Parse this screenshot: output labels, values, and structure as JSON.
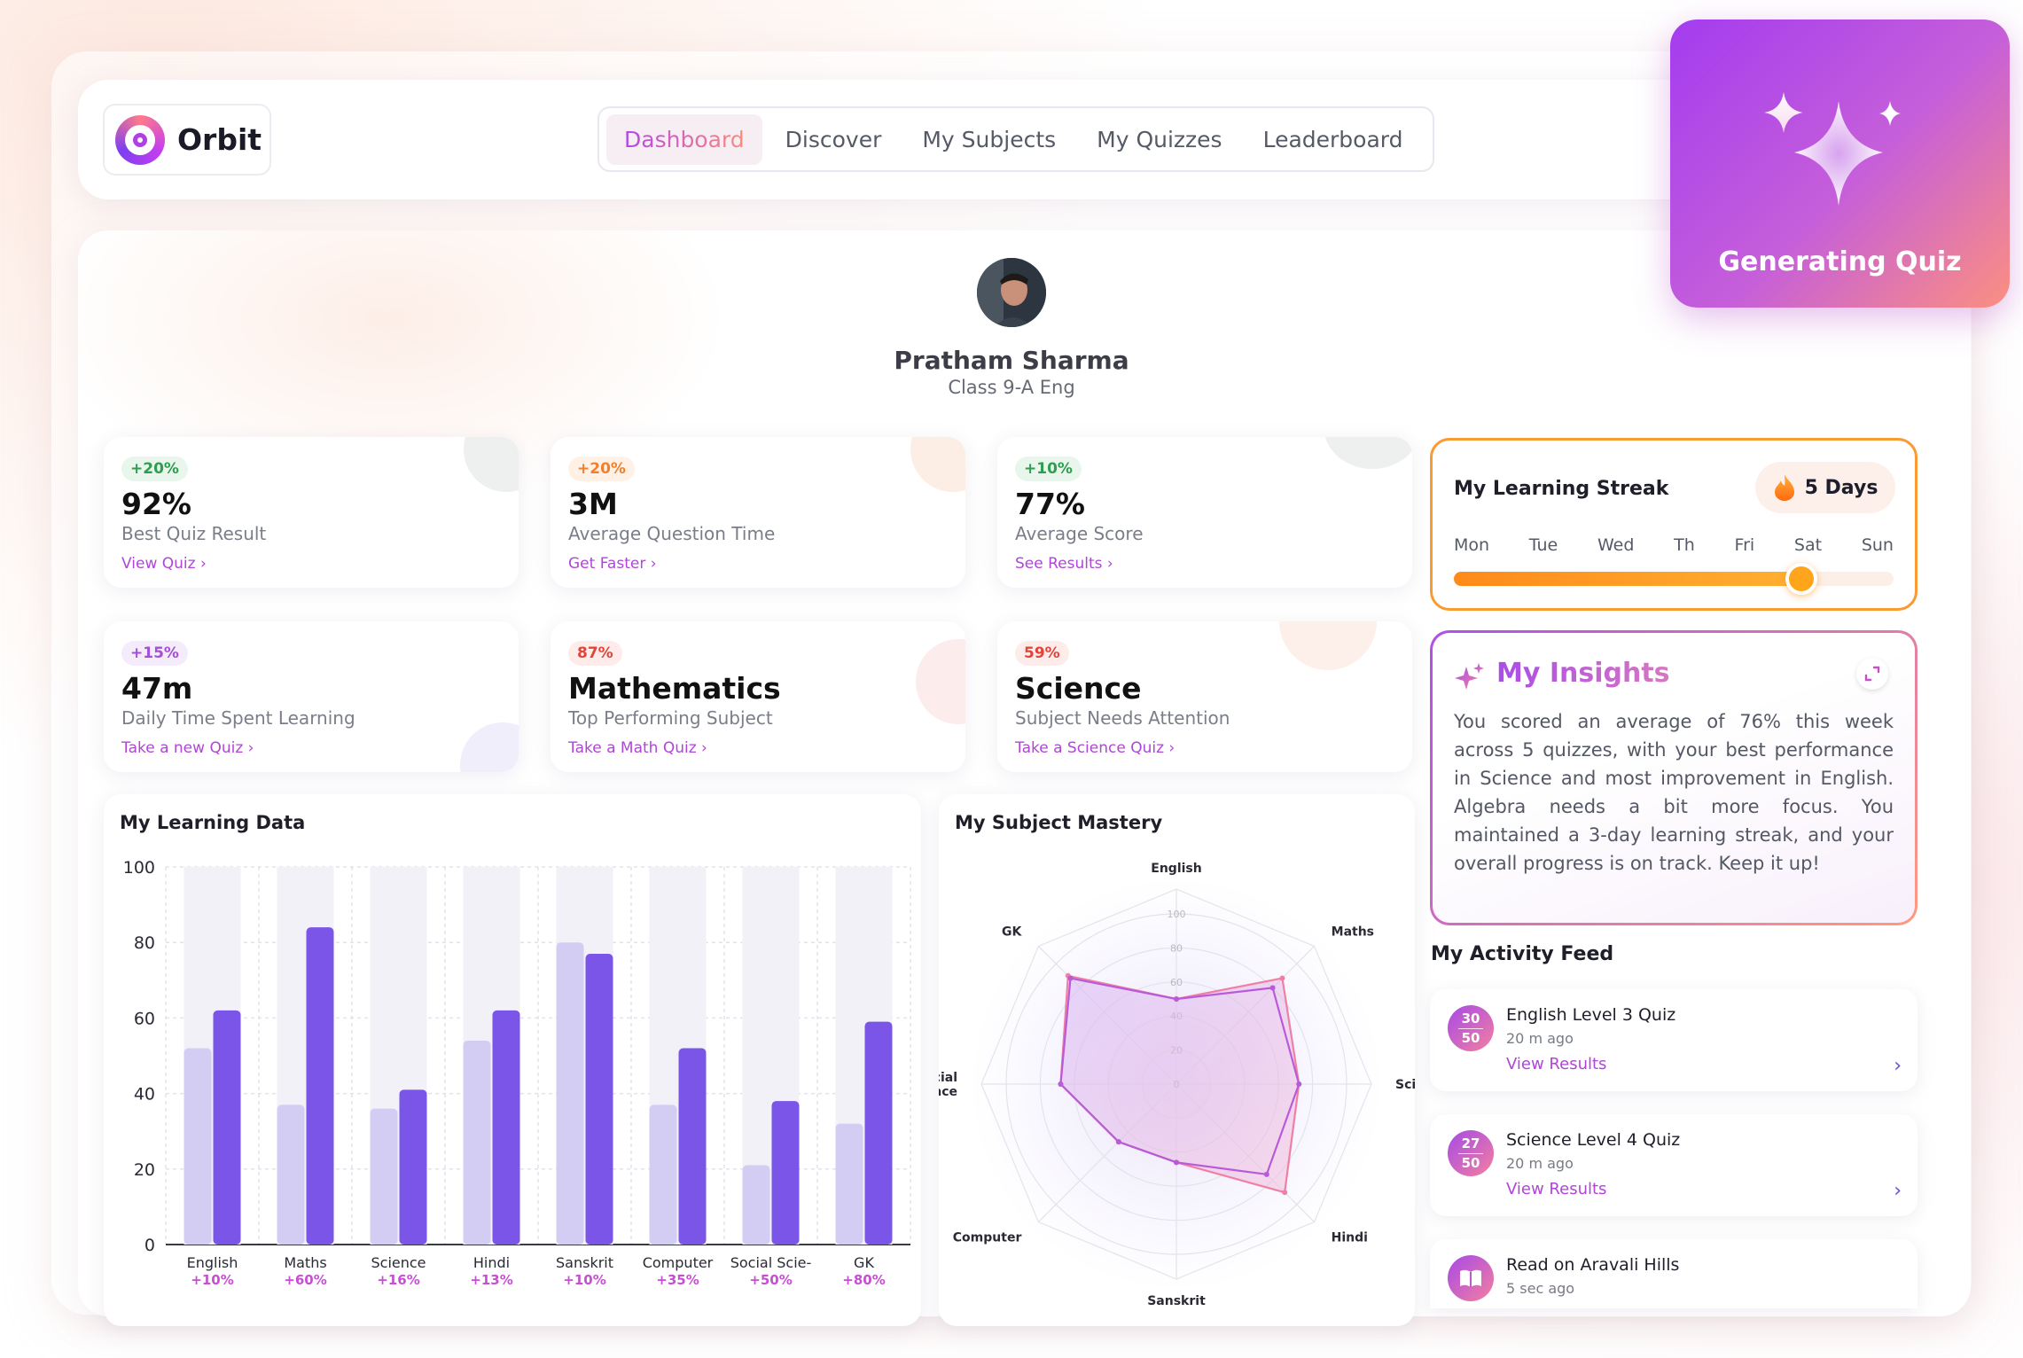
{
  "app": {
    "name": "Orbit"
  },
  "nav": {
    "tabs": [
      {
        "label": "Dashboard",
        "active": true
      },
      {
        "label": "Discover"
      },
      {
        "label": "My Subjects"
      },
      {
        "label": "My Quizzes"
      },
      {
        "label": "Leaderboard"
      }
    ]
  },
  "generating": {
    "label": "Generating Quiz"
  },
  "profile": {
    "name": "Pratham Sharma",
    "class": "Class 9-A Eng"
  },
  "stats": [
    {
      "badge": "+20%",
      "badge_color": "green",
      "value": "92%",
      "label": "Best Quiz Result",
      "link": "View Quiz"
    },
    {
      "badge": "+20%",
      "badge_color": "orange",
      "value": "3M",
      "label": "Average Question Time",
      "link": "Get Faster"
    },
    {
      "badge": "+10%",
      "badge_color": "green",
      "value": "77%",
      "label": "Average Score",
      "link": "See Results"
    },
    {
      "badge": "+15%",
      "badge_color": "purple",
      "value": "47m",
      "label": "Daily Time Spent Learning",
      "link": "Take a new Quiz"
    },
    {
      "badge": "87%",
      "badge_color": "red",
      "value": "Mathematics",
      "label": "Top Performing Subject",
      "link": "Take a Math Quiz"
    },
    {
      "badge": "59%",
      "badge_color": "red",
      "value": "Science",
      "label": "Subject Needs Attention",
      "link": "Take a Science Quiz"
    }
  ],
  "streak": {
    "title": "My Learning Streak",
    "days_label": "5 Days",
    "days": [
      "Mon",
      "Tue",
      "Wed",
      "Th",
      "Fri",
      "Sat",
      "Sun"
    ],
    "progress": 0.79
  },
  "insights": {
    "title": "My Insights",
    "text": "You scored an average of 76% this week across 5 quizzes, with your best performance in Science and most improvement in English. Algebra needs a bit more focus. You maintained a 3-day learning streak, and your overall progress is on track. Keep it up!"
  },
  "activity": {
    "title": "My Activity Feed",
    "items": [
      {
        "score_top": "30",
        "score_bottom": "50",
        "title": "English Level 3 Quiz",
        "time": "20 m ago",
        "link": "View Results"
      },
      {
        "score_top": "27",
        "score_bottom": "50",
        "title": "Science Level 4 Quiz",
        "time": "20 m ago",
        "link": "View Results"
      },
      {
        "title": "Read on Aravali Hills",
        "time": "5 sec ago",
        "icon": "book-icon"
      }
    ]
  },
  "learning_data": {
    "title": "My Learning Data",
    "chart_data": {
      "type": "bar",
      "categories": [
        "English",
        "Maths",
        "Science",
        "Hindi",
        "Sanskrit",
        "Computer",
        "Social Scie-",
        "GK"
      ],
      "changes": [
        "+10%",
        "+60%",
        "+16%",
        "+13%",
        "+10%",
        "+35%",
        "+50%",
        "+80%"
      ],
      "series": [
        {
          "values": [
            52,
            37,
            36,
            54,
            80,
            37,
            21,
            32
          ],
          "color": "#d4cdf3"
        },
        {
          "values": [
            62,
            84,
            41,
            62,
            77,
            52,
            38,
            59
          ],
          "color": "#7a55e8"
        }
      ],
      "ylim": [
        0,
        100
      ],
      "yticks": [
        "0",
        "20",
        "40",
        "60",
        "80",
        "100"
      ]
    }
  },
  "mastery": {
    "title": "My Subject Mastery",
    "chart_data": {
      "type": "radar",
      "axes": [
        "English",
        "Maths",
        "Science",
        "Hindi",
        "Sanskrit",
        "Computer",
        "Social Science",
        "GK"
      ],
      "ticks": [
        "0",
        "20",
        "40",
        "60",
        "80",
        "100"
      ],
      "range": [
        0,
        100
      ],
      "series": [
        {
          "values": [
            50,
            88,
            72,
            90,
            46,
            48,
            68,
            90
          ],
          "color": "#f07fa4"
        },
        {
          "values": [
            50,
            80,
            72,
            75,
            46,
            48,
            68,
            88
          ],
          "color": "#b95ad9"
        }
      ]
    }
  }
}
